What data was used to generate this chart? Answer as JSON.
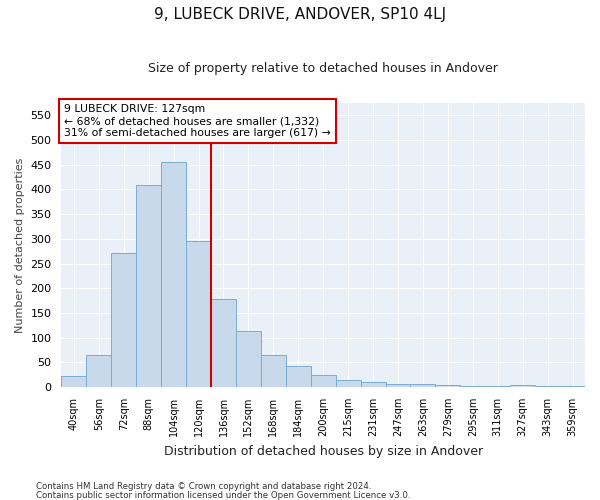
{
  "title": "9, LUBECK DRIVE, ANDOVER, SP10 4LJ",
  "subtitle": "Size of property relative to detached houses in Andover",
  "xlabel": "Distribution of detached houses by size in Andover",
  "ylabel": "Number of detached properties",
  "categories": [
    "40sqm",
    "56sqm",
    "72sqm",
    "88sqm",
    "104sqm",
    "120sqm",
    "136sqm",
    "152sqm",
    "168sqm",
    "184sqm",
    "200sqm",
    "215sqm",
    "231sqm",
    "247sqm",
    "263sqm",
    "279sqm",
    "295sqm",
    "311sqm",
    "327sqm",
    "343sqm",
    "359sqm"
  ],
  "values": [
    22,
    65,
    272,
    410,
    455,
    295,
    178,
    113,
    65,
    42,
    25,
    14,
    10,
    6,
    6,
    4,
    3,
    2,
    5,
    2,
    2
  ],
  "bar_color": "#c9d9ec",
  "bar_edge_color": "#7aadd4",
  "vline_x": 5.5,
  "vline_color": "#cc0000",
  "ylim": [
    0,
    575
  ],
  "yticks": [
    0,
    50,
    100,
    150,
    200,
    250,
    300,
    350,
    400,
    450,
    500,
    550
  ],
  "annotation_text": "9 LUBECK DRIVE: 127sqm\n← 68% of detached houses are smaller (1,332)\n31% of semi-detached houses are larger (617) →",
  "annotation_box_color": "#ffffff",
  "annotation_box_edge": "#cc0000",
  "bg_color": "#eaf0f8",
  "grid_color": "#ffffff",
  "footnote1": "Contains HM Land Registry data © Crown copyright and database right 2024.",
  "footnote2": "Contains public sector information licensed under the Open Government Licence v3.0."
}
